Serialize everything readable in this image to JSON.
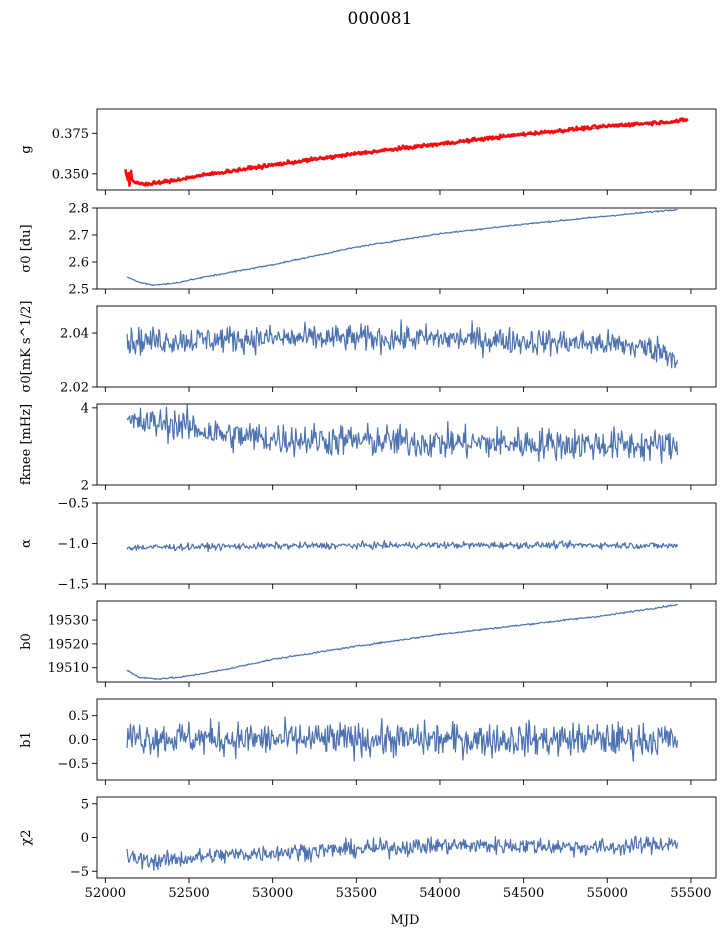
{
  "figure": {
    "title": "000081",
    "xlabel": "MJD"
  },
  "chart_data": {
    "type": "line",
    "title": "000081",
    "xlabel": "MJD",
    "xlim": [
      51950,
      55650
    ],
    "x_ticks": [
      52000,
      52500,
      53000,
      53500,
      54000,
      54500,
      55000,
      55500
    ],
    "x_tick_labels": [
      "52000",
      "52500",
      "53000",
      "53500",
      "54000",
      "54500",
      "55000",
      "55500"
    ],
    "sample": {
      "x_start": 52130,
      "x_end": 55420
    },
    "colors": {
      "series": "#4c72b0",
      "overlay": "#ff0000"
    },
    "panels": [
      {
        "key": "g",
        "ylabel": "g",
        "ylim": [
          0.34,
          0.39
        ],
        "yticks": [
          0.35,
          0.375
        ],
        "ytick_labels": [
          "0.350",
          "0.375"
        ],
        "series": [
          {
            "color": "#4c72b0",
            "noise": 0.0005,
            "scatter": false,
            "anchors": [
              [
                52130,
                0.349
              ],
              [
                52180,
                0.345
              ],
              [
                52250,
                0.3435
              ],
              [
                52400,
                0.3455
              ],
              [
                52600,
                0.349
              ],
              [
                53000,
                0.355
              ],
              [
                53500,
                0.362
              ],
              [
                54000,
                0.368
              ],
              [
                54500,
                0.374
              ],
              [
                55000,
                0.379
              ],
              [
                55420,
                0.382
              ]
            ]
          },
          {
            "color": "#ff0000",
            "noise": 0.0008,
            "scatter": true,
            "anchors": [
              [
                52120,
                0.35
              ],
              [
                52180,
                0.3445
              ],
              [
                52250,
                0.3435
              ],
              [
                52400,
                0.3458
              ],
              [
                52600,
                0.3495
              ],
              [
                53000,
                0.3555
              ],
              [
                53500,
                0.3625
              ],
              [
                54000,
                0.3685
              ],
              [
                54500,
                0.3745
              ],
              [
                55000,
                0.3795
              ],
              [
                55480,
                0.383
              ]
            ]
          }
        ]
      },
      {
        "key": "sigma0-du",
        "ylabel": "σ0 [du]",
        "ylim": [
          2.5,
          2.8
        ],
        "yticks": [
          2.5,
          2.6,
          2.7,
          2.8
        ],
        "ytick_labels": [
          "2.5",
          "2.6",
          "2.7",
          "2.8"
        ],
        "series": [
          {
            "color": "#4c72b0",
            "noise": 0.002,
            "scatter": false,
            "anchors": [
              [
                52130,
                2.545
              ],
              [
                52200,
                2.525
              ],
              [
                52280,
                2.515
              ],
              [
                52400,
                2.52
              ],
              [
                52600,
                2.545
              ],
              [
                53000,
                2.59
              ],
              [
                53500,
                2.655
              ],
              [
                54000,
                2.705
              ],
              [
                54500,
                2.74
              ],
              [
                55000,
                2.77
              ],
              [
                55420,
                2.795
              ]
            ]
          }
        ]
      },
      {
        "key": "sigma0-mk",
        "ylabel": "σ0[mK s^1/2]",
        "ylim": [
          2.02,
          2.05
        ],
        "yticks": [
          2.02,
          2.04
        ],
        "ytick_labels": [
          "2.02",
          "2.04"
        ],
        "series": [
          {
            "color": "#4c72b0",
            "noise": 0.0035,
            "scatter": false,
            "anchors": [
              [
                52130,
                2.037
              ],
              [
                53000,
                2.038
              ],
              [
                54000,
                2.038
              ],
              [
                55000,
                2.036
              ],
              [
                55300,
                2.034
              ],
              [
                55420,
                2.031
              ]
            ]
          }
        ]
      },
      {
        "key": "fknee",
        "ylabel": "fknee [mHz]",
        "ylim": [
          2,
          4.1
        ],
        "yticks": [
          2,
          4
        ],
        "ytick_labels": [
          "2",
          "4"
        ],
        "series": [
          {
            "color": "#4c72b0",
            "noise": 0.3,
            "scatter": false,
            "anchors": [
              [
                52130,
                3.6
              ],
              [
                52400,
                3.6
              ],
              [
                52700,
                3.3
              ],
              [
                53000,
                3.2
              ],
              [
                54000,
                3.1
              ],
              [
                55000,
                3.05
              ],
              [
                55420,
                3.0
              ]
            ]
          }
        ]
      },
      {
        "key": "alpha",
        "ylabel": "α",
        "ylim": [
          -1.5,
          -0.5
        ],
        "yticks": [
          -1.5,
          -1.0,
          -0.5
        ],
        "ytick_labels": [
          "−1.5",
          "−1.0",
          "−0.5"
        ],
        "series": [
          {
            "color": "#4c72b0",
            "noise": 0.03,
            "scatter": false,
            "anchors": [
              [
                52130,
                -1.05
              ],
              [
                53000,
                -1.03
              ],
              [
                54000,
                -1.02
              ],
              [
                55000,
                -1.02
              ],
              [
                55420,
                -1.03
              ]
            ]
          }
        ]
      },
      {
        "key": "b0",
        "ylabel": "b0",
        "ylim": [
          19504,
          19538
        ],
        "yticks": [
          19510,
          19520,
          19530
        ],
        "ytick_labels": [
          "19510",
          "19520",
          "19530"
        ],
        "series": [
          {
            "color": "#4c72b0",
            "noise": 0.25,
            "scatter": false,
            "anchors": [
              [
                52130,
                19509
              ],
              [
                52200,
                19506
              ],
              [
                52300,
                19505.3
              ],
              [
                52450,
                19506
              ],
              [
                52700,
                19509
              ],
              [
                53000,
                19513.5
              ],
              [
                53500,
                19519
              ],
              [
                54000,
                19524
              ],
              [
                54500,
                19528
              ],
              [
                55000,
                19532
              ],
              [
                55420,
                19536.5
              ]
            ]
          }
        ]
      },
      {
        "key": "b1",
        "ylabel": "b1",
        "ylim": [
          -0.85,
          0.85
        ],
        "yticks": [
          -0.5,
          0.0,
          0.5
        ],
        "ytick_labels": [
          "−0.5",
          "0.0",
          "0.5"
        ],
        "series": [
          {
            "color": "#4c72b0",
            "noise": 0.25,
            "scatter": false,
            "anchors": [
              [
                52130,
                0.05
              ],
              [
                53000,
                0.0
              ],
              [
                54000,
                0.0
              ],
              [
                55000,
                0.0
              ],
              [
                55420,
                0.0
              ]
            ]
          }
        ]
      },
      {
        "key": "chi2",
        "ylabel": "χ2",
        "ylim": [
          -6,
          6
        ],
        "yticks": [
          -5,
          0,
          5
        ],
        "ytick_labels": [
          "−5",
          "0",
          "5"
        ],
        "series": [
          {
            "color": "#4c72b0",
            "noise": 0.9,
            "scatter": false,
            "anchors": [
              [
                52130,
                -3.0
              ],
              [
                52300,
                -3.5
              ],
              [
                52600,
                -2.8
              ],
              [
                53000,
                -2.2
              ],
              [
                53500,
                -1.7
              ],
              [
                54000,
                -1.2
              ],
              [
                54500,
                -1.2
              ],
              [
                55000,
                -1.5
              ],
              [
                55420,
                -0.8
              ]
            ]
          }
        ]
      }
    ]
  }
}
